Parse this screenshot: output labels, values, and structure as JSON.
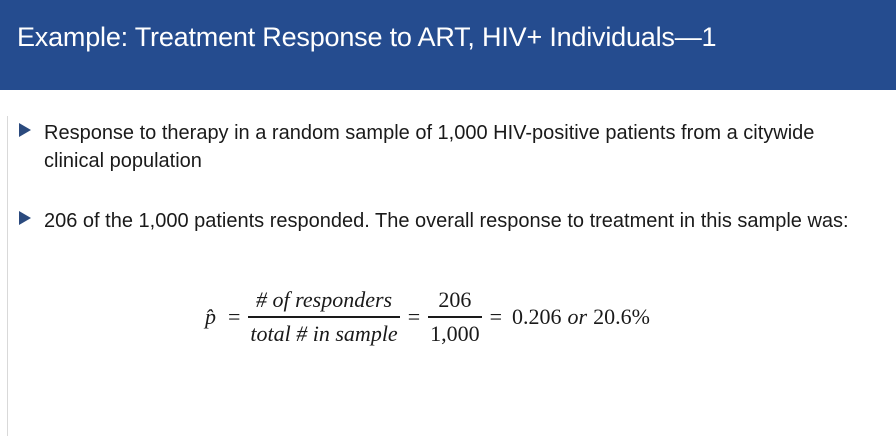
{
  "slide": {
    "title": "Example: Treatment Response to ART, HIV+ Individuals—1"
  },
  "bullets": [
    {
      "text": "Response to therapy in a random sample of 1,000 HIV-positive patients from a citywide clinical population"
    },
    {
      "text": "206 of the 1,000 patients responded. The overall response to treatment in this sample was:"
    }
  ],
  "formula": {
    "lhs": "p̂",
    "equals": "=",
    "frac1_num": "# of responders",
    "frac1_den": "total # in sample",
    "frac2_num": "206",
    "frac2_den": "1,000",
    "result_value": "0.206",
    "result_or": "or",
    "result_percent": "20.6%"
  },
  "colors": {
    "title_bar": "#254c8f",
    "bullet_marker": "#2b4a7e"
  }
}
